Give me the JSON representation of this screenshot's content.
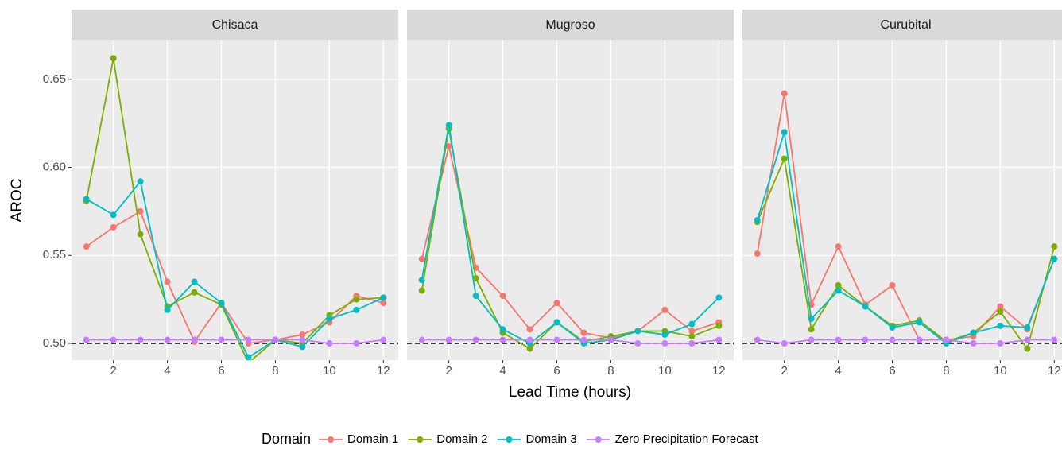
{
  "x_label": "Lead Time (hours)",
  "y_label": "AROC",
  "legend_title": "Domain",
  "chart_data": [
    {
      "type": "line",
      "title": "Chisaca",
      "x": [
        1,
        2,
        3,
        4,
        5,
        6,
        7,
        8,
        9,
        10,
        11,
        12
      ],
      "xlim": [
        0.45,
        12.55
      ],
      "xticks": [
        2,
        4,
        6,
        8,
        10,
        12
      ],
      "ylim": [
        0.4905,
        0.6725
      ],
      "yticks": [
        {
          "value": 0.5,
          "label": "0.50"
        },
        0.55,
        {
          "value": 0.6,
          "label": "0.60"
        },
        0.65
      ],
      "grid": true,
      "reference_line": 0.5,
      "series": [
        {
          "name": "Domain 1",
          "color": "#F8766D",
          "values": [
            0.555,
            0.566,
            0.575,
            0.535,
            0.501,
            0.523,
            0.5,
            0.502,
            0.505,
            0.512,
            0.527,
            0.523
          ]
        },
        {
          "name": "Domain 2",
          "color": "#7CAE00",
          "values": [
            0.581,
            0.662,
            0.562,
            0.521,
            0.529,
            0.522,
            0.489,
            0.502,
            0.5,
            0.516,
            0.525,
            0.526
          ]
        },
        {
          "name": "Domain 3",
          "color": "#00BFC4",
          "values": [
            0.582,
            0.573,
            0.592,
            0.519,
            0.535,
            0.523,
            0.492,
            0.502,
            0.498,
            0.514,
            0.519,
            0.526
          ]
        },
        {
          "name": "Zero Precipitation Forecast",
          "color": "#C77CFF",
          "values": [
            0.502,
            0.502,
            0.502,
            0.502,
            0.502,
            0.502,
            0.502,
            0.502,
            0.502,
            0.5,
            0.5,
            0.502
          ]
        }
      ]
    },
    {
      "type": "line",
      "title": "Mugroso",
      "x": [
        1,
        2,
        3,
        4,
        5,
        6,
        7,
        8,
        9,
        10,
        11,
        12
      ],
      "xlim": [
        0.45,
        12.55
      ],
      "xticks": [
        2,
        4,
        6,
        8,
        10,
        12
      ],
      "ylim": [
        0.4905,
        0.6725
      ],
      "yticks": [
        {
          "value": 0.5,
          "label": "0.50"
        },
        0.55,
        {
          "value": 0.6,
          "label": "0.60"
        },
        0.65
      ],
      "grid": true,
      "reference_line": 0.5,
      "series": [
        {
          "name": "Domain 1",
          "color": "#F8766D",
          "values": [
            0.548,
            0.612,
            0.543,
            0.527,
            0.508,
            0.523,
            0.506,
            0.503,
            0.507,
            0.519,
            0.507,
            0.512
          ]
        },
        {
          "name": "Domain 2",
          "color": "#7CAE00",
          "values": [
            0.53,
            0.622,
            0.537,
            0.506,
            0.497,
            0.512,
            0.501,
            0.504,
            0.507,
            0.507,
            0.504,
            0.51
          ]
        },
        {
          "name": "Domain 3",
          "color": "#00BFC4",
          "values": [
            0.536,
            0.624,
            0.527,
            0.508,
            0.5,
            0.512,
            0.5,
            0.502,
            0.507,
            0.505,
            0.511,
            0.526
          ]
        },
        {
          "name": "Zero Precipitation Forecast",
          "color": "#C77CFF",
          "values": [
            0.502,
            0.502,
            0.502,
            0.502,
            0.502,
            0.502,
            0.502,
            0.502,
            0.5,
            0.5,
            0.5,
            0.502
          ]
        }
      ]
    },
    {
      "type": "line",
      "title": "Curubital",
      "x": [
        1,
        2,
        3,
        4,
        5,
        6,
        7,
        8,
        9,
        10,
        11,
        12
      ],
      "xlim": [
        0.45,
        12.55
      ],
      "xticks": [
        2,
        4,
        6,
        8,
        10,
        12
      ],
      "ylim": [
        0.4905,
        0.6725
      ],
      "yticks": [
        {
          "value": 0.5,
          "label": "0.50"
        },
        0.55,
        {
          "value": 0.6,
          "label": "0.60"
        },
        0.65
      ],
      "grid": true,
      "reference_line": 0.5,
      "series": [
        {
          "name": "Domain 1",
          "color": "#F8766D",
          "values": [
            0.551,
            0.642,
            0.522,
            0.555,
            0.522,
            0.533,
            0.502,
            0.502,
            0.504,
            0.521,
            0.508,
            0.548
          ]
        },
        {
          "name": "Domain 2",
          "color": "#7CAE00",
          "values": [
            0.569,
            0.605,
            0.508,
            0.533,
            0.521,
            0.51,
            0.513,
            0.501,
            0.506,
            0.518,
            0.497,
            0.555
          ]
        },
        {
          "name": "Domain 3",
          "color": "#00BFC4",
          "values": [
            0.57,
            0.62,
            0.514,
            0.53,
            0.521,
            0.509,
            0.512,
            0.5,
            0.506,
            0.51,
            0.509,
            0.548
          ]
        },
        {
          "name": "Zero Precipitation Forecast",
          "color": "#C77CFF",
          "values": [
            0.502,
            0.5,
            0.502,
            0.502,
            0.502,
            0.502,
            0.502,
            0.502,
            0.5,
            0.5,
            0.502,
            0.502
          ]
        }
      ]
    }
  ]
}
